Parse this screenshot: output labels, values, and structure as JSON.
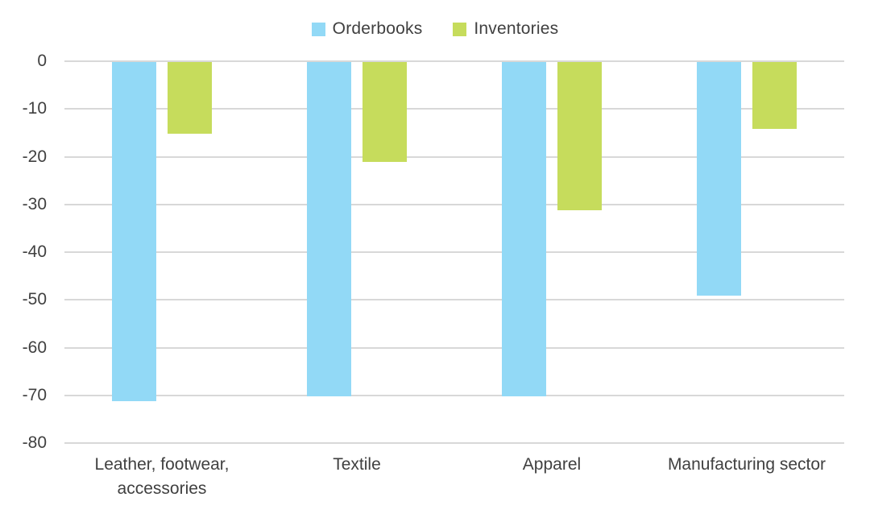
{
  "chart_data": {
    "type": "bar",
    "title": "",
    "xlabel": "",
    "ylabel": "",
    "categories": [
      "Leather, footwear, accessories",
      "Textile",
      "Apparel",
      "Manufacturing sector"
    ],
    "series": [
      {
        "name": "Orderbooks",
        "color": "#92d9f6",
        "values": [
          -71,
          -70,
          -70,
          -49
        ]
      },
      {
        "name": "Inventories",
        "color": "#c6dc5c",
        "values": [
          -15,
          -21,
          -31,
          -14
        ]
      }
    ],
    "ylim": [
      -80,
      0
    ],
    "yticks": [
      0,
      -10,
      -20,
      -30,
      -40,
      -50,
      -60,
      -70,
      -80
    ],
    "grid": "horizontal",
    "gridline_color": "#d8d8d8",
    "legend_position": "top-center",
    "text_color": "#404040",
    "background_color": "#ffffff"
  }
}
